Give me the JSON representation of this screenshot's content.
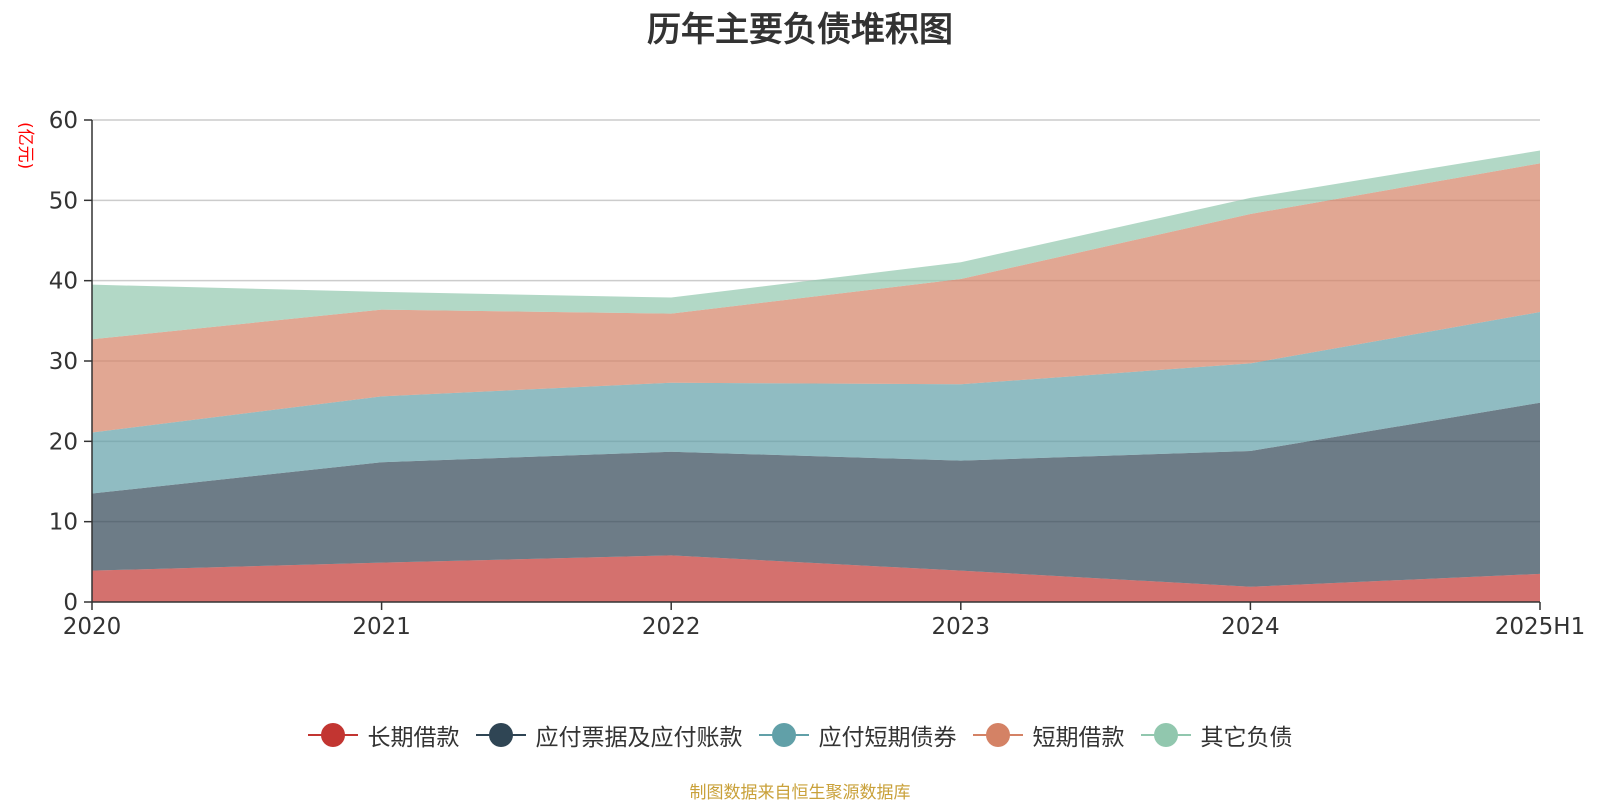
{
  "chart_data": {
    "type": "area",
    "stacked": true,
    "title": "历年主要负债堆积图",
    "unit_label": "(亿元)",
    "categories": [
      "2020",
      "2021",
      "2022",
      "2023",
      "2024",
      "2025H1"
    ],
    "ylim": [
      0,
      60
    ],
    "yticks": [
      "0",
      "10",
      "20",
      "30",
      "40",
      "50",
      "60"
    ],
    "grid": true,
    "legend_position": "bottom",
    "series": [
      {
        "name": "长期借款",
        "color": "#c23531",
        "values": [
          3.9,
          4.9,
          5.8,
          3.9,
          1.9,
          3.5
        ]
      },
      {
        "name": "应付票据及应付账款",
        "color": "#2f4554",
        "values": [
          9.6,
          12.5,
          12.9,
          13.7,
          16.9,
          21.3
        ]
      },
      {
        "name": "应付短期债券",
        "color": "#61a0a8",
        "values": [
          7.6,
          8.2,
          8.6,
          9.5,
          10.9,
          11.3
        ]
      },
      {
        "name": "短期借款",
        "color": "#d48265",
        "values": [
          11.6,
          10.8,
          8.6,
          13.1,
          18.6,
          18.5
        ]
      },
      {
        "name": "其它负债",
        "color": "#91c7ae",
        "values": [
          6.8,
          2.2,
          2.0,
          2.1,
          2.0,
          1.6
        ]
      }
    ]
  },
  "source_note": "制图数据来自恒生聚源数据库"
}
